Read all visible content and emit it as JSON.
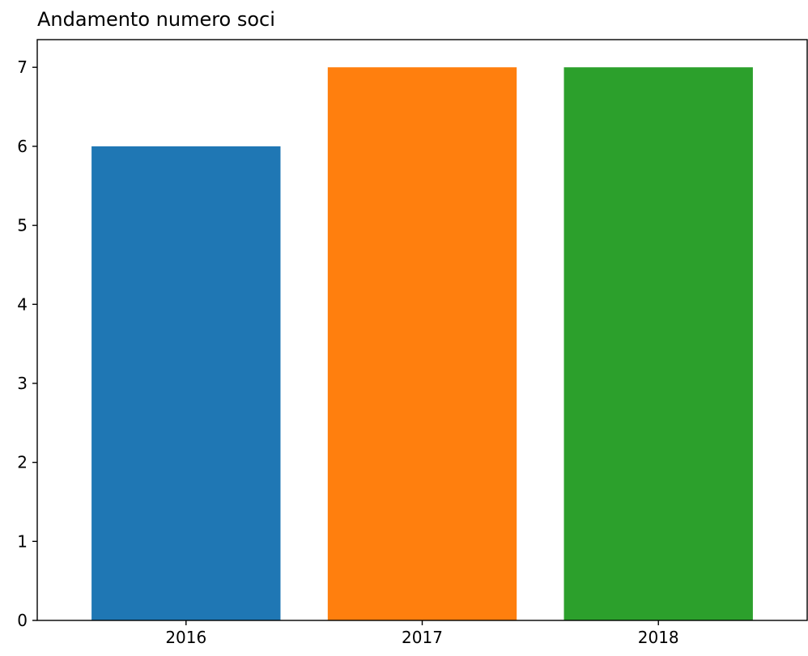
{
  "chart_data": {
    "type": "bar",
    "title": "Andamento numero soci",
    "xlabel": "",
    "ylabel": "",
    "categories": [
      "2016",
      "2017",
      "2018"
    ],
    "values": [
      6,
      7,
      7
    ],
    "colors": [
      "#1f77b4",
      "#ff7f0e",
      "#2ca02c"
    ],
    "ylim": [
      0,
      7.35
    ],
    "yticks": [
      0,
      1,
      2,
      3,
      4,
      5,
      6,
      7
    ],
    "grid": false,
    "legend": "none"
  }
}
